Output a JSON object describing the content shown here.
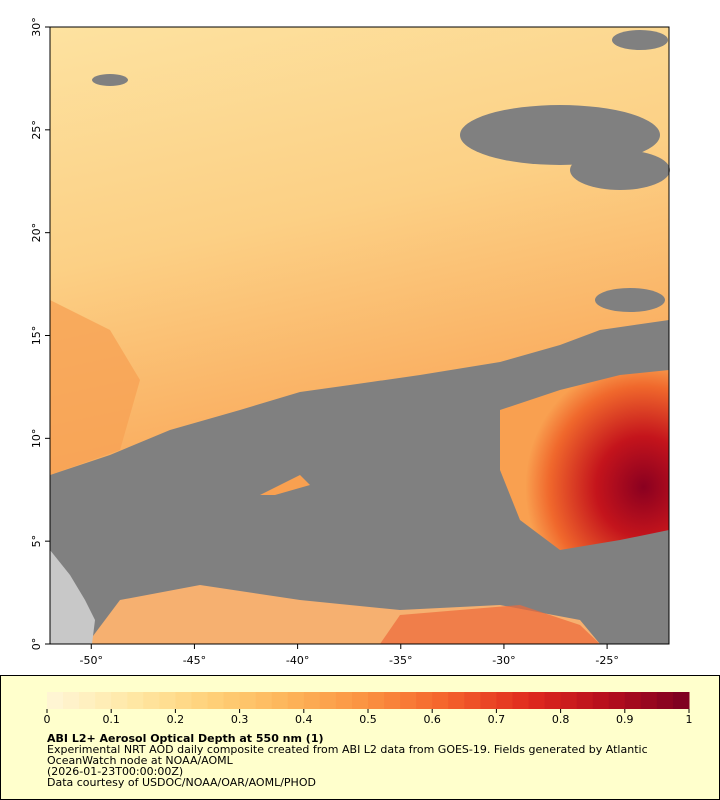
{
  "map": {
    "xlim": [
      -52,
      -22
    ],
    "ylim": [
      0,
      30
    ],
    "xticks": [
      {
        "value": -50,
        "label": "-50°"
      },
      {
        "value": -45,
        "label": "-45°"
      },
      {
        "value": -40,
        "label": "-40°"
      },
      {
        "value": -35,
        "label": "-35°"
      },
      {
        "value": -30,
        "label": "-30°"
      },
      {
        "value": -25,
        "label": "-25°"
      }
    ],
    "yticks": [
      {
        "value": 0,
        "label": "0°"
      },
      {
        "value": 5,
        "label": "5°"
      },
      {
        "value": 10,
        "label": "10°"
      },
      {
        "value": 15,
        "label": "15°"
      },
      {
        "value": 20,
        "label": "20°"
      },
      {
        "value": 25,
        "label": "25°"
      },
      {
        "value": 30,
        "label": "30°"
      }
    ]
  },
  "colorbar": {
    "lim": [
      0,
      1
    ],
    "ticks": [
      0,
      0.1,
      0.2,
      0.3,
      0.4,
      0.5,
      0.6,
      0.7,
      0.8,
      0.9,
      1
    ],
    "colors": [
      "#fff6d8",
      "#ffe9a8",
      "#ffd27a",
      "#fdb55a",
      "#fb9140",
      "#f4622b",
      "#e02a1e",
      "#b50d1c",
      "#7a0022"
    ]
  },
  "caption": {
    "title": "ABI L2+ Aerosol Optical Depth at 550 nm (1)",
    "lines": [
      "Experimental NRT AOD daily composite created from ABI L2 data from GOES-19. Fields generated by Atlantic",
      "OceanWatch node at NOAA/AOML",
      "(2026-01-23T00:00:00Z)",
      "Data courtesy of USDOC/NOAA/OAR/AOML/PHOD"
    ]
  }
}
